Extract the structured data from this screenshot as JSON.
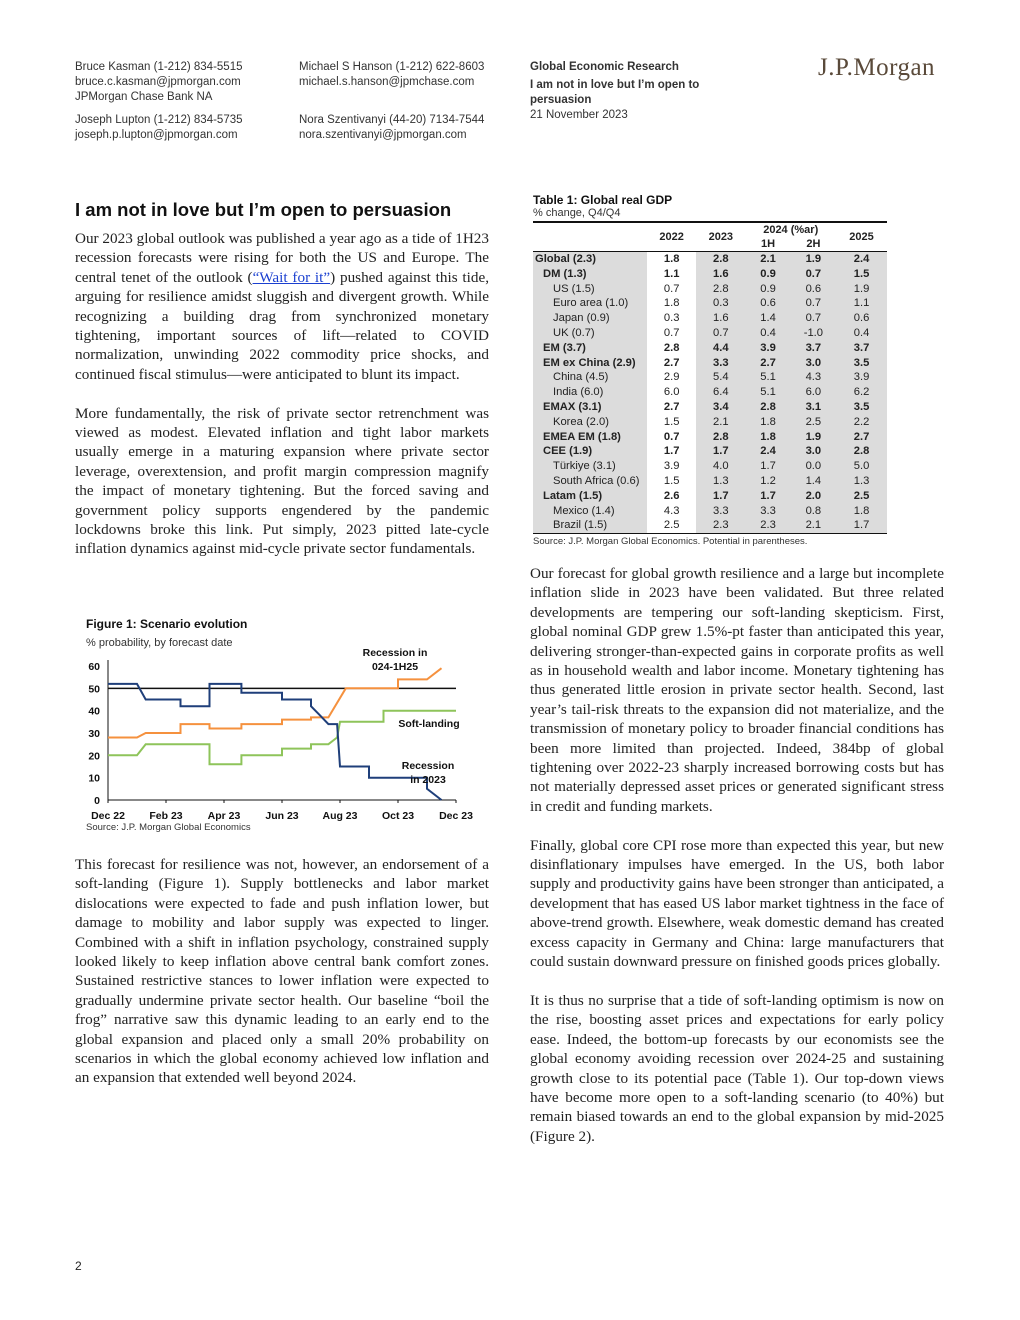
{
  "header": {
    "author_block_1": [
      "Bruce Kasman  (1-212) 834-5515",
      "bruce.c.kasman@jpmorgan.com",
      "JPMorgan Chase Bank NA"
    ],
    "author_block_2": [
      "Joseph Lupton  (1-212) 834-5735",
      "joseph.p.lupton@jpmorgan.com"
    ],
    "author_block_3": [
      "Michael S Hanson  (1-212) 622-8603",
      "michael.s.hanson@jpmchase.com"
    ],
    "author_block_4": [
      "Nora Szentivanyi  (44-20) 7134-7544",
      "nora.szentivanyi@jpmorgan.com"
    ],
    "research_unit": "Global Economic Research",
    "report_title": "I am not in love but I’m open to persuasion",
    "date": "21 November 2023",
    "logo": "J.P.Morgan"
  },
  "article": {
    "title": "I am not in love but I’m open to persuasion",
    "p1_before_link": "Our 2023 global outlook was published a year ago as a tide of 1H23 recession forecasts were rising for both the US and Europe. The central tenet of the outlook (",
    "p1_link": "“Wait for it”",
    "p1_after_link": ") pushed against this tide, arguing for resilience amidst sluggish and divergent growth. While recognizing a building drag from synchronized monetary tightening, important sources of lift—related to COVID normalization, unwinding 2022 commodity price shocks, and continued fiscal stimulus—were anticipated to blunt its impact.",
    "p2": "More fundamentally, the risk of private sector retrenchment was viewed as modest. Elevated inflation and tight labor markets usually emerge in a maturing expansion where private sector leverage, overextension, and profit margin compression magnify the impact of monetary tightening. But the forced saving and government policy supports engendered by the pandemic lockdowns broke this link. Put simply, 2023 pitted late-cycle inflation dynamics against mid-cycle private sector fundamentals.",
    "p3": "This forecast for resilience was not, however, an endorsement of a soft-landing (Figure 1). Supply bottlenecks and labor market dislocations were expected to fade and push inflation lower, but damage to mobility and labor supply was expected to linger. Combined with a shift in inflation psychology, constrained supply looked likely to keep inflation above central bank comfort zones. Sustained restrictive stances to lower inflation were expected to gradually undermine private sector health. Our baseline “boil the frog” narrative saw this dynamic leading to an early end to the global expansion and placed only a small 20% probability on scenarios in which the global economy achieved low inflation and an expansion that extended well beyond 2024.",
    "p4": "Our forecast for global growth resilience and a large but incomplete inflation slide in 2023 have been validated. But three related developments are tempering our soft-landing skepticism. First, global nominal GDP grew 1.5%-pt faster than anticipated this year, delivering stronger-than-expected gains in corporate profits as well as in household wealth and labor income. Monetary tightening has thus generated little erosion in private sector health. Second, last year’s tail-risk threats to the expansion did not materialize, and the transmission of monetary policy to broader financial conditions has been more limited than projected. Indeed, 384bp of global tightening over 2022-23 sharply increased borrowing costs but has not materially depressed asset prices or generated significant stress in credit and funding markets.",
    "p5": "Finally, global core CPI rose more than expected this year, but new disinflationary impulses have emerged. In the US, both labor supply and productivity gains have been stronger than anticipated, a development that has eased US labor market tightness in the face of above-trend growth. Elsewhere, weak domestic demand has created excess capacity in Germany and China: large manufacturers that could sustain downward pressure on finished goods prices globally.",
    "p6": "It is thus no surprise that a tide of soft-landing optimism is now on the rise, boosting asset prices and expectations for early policy ease. Indeed, the bottom-up forecasts by our economists see the global economy avoiding recession over 2024-25 and sustaining growth close to its potential pace (Table 1). Our top-down views have become more open to a soft-landing scenario (to 40%) but remain biased towards an end to the global expansion by mid-2025 (Figure 2)."
  },
  "chart_data": {
    "type": "line",
    "title": "Figure 1: Scenario evolution",
    "subtitle": "% probability, by forecast date",
    "source": "Source: J.P. Morgan Global Economics",
    "x_ticks": [
      "Dec 22",
      "Feb 23",
      "Apr 23",
      "Jun 23",
      "Aug 23",
      "Oct 23",
      "Dec 23"
    ],
    "xlim": [
      0,
      12
    ],
    "ylim": [
      0,
      60
    ],
    "y_ticks": [
      0,
      10,
      20,
      30,
      40,
      50,
      60
    ],
    "reference_line": 50,
    "series": [
      {
        "name": "Recession in 2024-1H25",
        "color": "#f5913e",
        "points": [
          [
            0,
            28
          ],
          [
            1,
            28
          ],
          [
            1.3,
            30
          ],
          [
            2.5,
            30
          ],
          [
            2.5,
            34
          ],
          [
            3.5,
            34
          ],
          [
            3.5,
            32
          ],
          [
            4.6,
            32
          ],
          [
            4.6,
            34
          ],
          [
            6,
            34
          ],
          [
            6,
            36
          ],
          [
            7,
            36
          ],
          [
            7,
            37
          ],
          [
            7.6,
            37
          ],
          [
            8.2,
            50
          ],
          [
            10,
            50
          ],
          [
            10,
            54
          ],
          [
            11,
            54
          ],
          [
            11.5,
            59
          ]
        ]
      },
      {
        "name": "Soft-landing",
        "color": "#8ec45a",
        "points": [
          [
            0,
            20
          ],
          [
            1,
            20
          ],
          [
            1.3,
            25
          ],
          [
            3.5,
            25
          ],
          [
            3.5,
            16
          ],
          [
            4.6,
            16
          ],
          [
            4.6,
            20
          ],
          [
            6,
            20
          ],
          [
            6,
            23
          ],
          [
            7,
            23
          ],
          [
            7,
            25
          ],
          [
            7.6,
            25
          ],
          [
            7.9,
            28
          ],
          [
            8,
            35
          ],
          [
            9.5,
            35
          ],
          [
            9.5,
            40
          ],
          [
            11,
            40
          ],
          [
            12,
            40
          ]
        ]
      },
      {
        "name": "Recession in 2023",
        "color": "#1f3f7a",
        "points": [
          [
            0,
            52
          ],
          [
            1,
            52
          ],
          [
            1.3,
            45
          ],
          [
            2.5,
            45
          ],
          [
            2.5,
            42
          ],
          [
            3.5,
            42
          ],
          [
            3.5,
            52
          ],
          [
            4.6,
            52
          ],
          [
            4.6,
            48
          ],
          [
            6,
            48
          ],
          [
            6,
            45
          ],
          [
            7,
            45
          ],
          [
            7,
            42
          ],
          [
            7.3,
            38
          ],
          [
            7.6,
            34
          ],
          [
            7.9,
            34
          ],
          [
            8,
            15
          ],
          [
            9,
            15
          ],
          [
            9,
            10
          ],
          [
            11,
            10
          ],
          [
            11,
            5
          ],
          [
            11.5,
            0
          ]
        ]
      }
    ]
  },
  "table1": {
    "title": "Table 1: Global real GDP",
    "subtitle": "% change, Q4/Q4",
    "headers": {
      "y2022": "2022",
      "y2023": "2023",
      "y2024": "2024 (%ar)",
      "h1": "1H",
      "h2": "2H",
      "y2025": "2025"
    },
    "rows": [
      {
        "label": "Global (2.3)",
        "values": [
          "1.8",
          "2.8",
          "2.1",
          "1.9",
          "2.4"
        ]
      },
      {
        "label": "DM (1.3)",
        "values": [
          "1.1",
          "1.6",
          "0.9",
          "0.7",
          "1.5"
        ]
      },
      {
        "label": "US (1.5)",
        "values": [
          "0.7",
          "2.8",
          "0.9",
          "0.6",
          "1.9"
        ]
      },
      {
        "label": "Euro area (1.0)",
        "values": [
          "1.8",
          "0.3",
          "0.6",
          "0.7",
          "1.1"
        ]
      },
      {
        "label": "Japan (0.9)",
        "values": [
          "0.3",
          "1.6",
          "1.4",
          "0.7",
          "0.6"
        ]
      },
      {
        "label": "UK (0.7)",
        "values": [
          "0.7",
          "0.7",
          "0.4",
          "-1.0",
          "0.4"
        ]
      },
      {
        "label": "EM (3.7)",
        "values": [
          "2.8",
          "4.4",
          "3.9",
          "3.7",
          "3.7"
        ]
      },
      {
        "label": "EM ex China (2.9)",
        "values": [
          "2.7",
          "3.3",
          "2.7",
          "3.0",
          "3.5"
        ]
      },
      {
        "label": "China (4.5)",
        "values": [
          "2.9",
          "5.4",
          "5.1",
          "4.3",
          "3.9"
        ]
      },
      {
        "label": "India (6.0)",
        "values": [
          "6.0",
          "6.4",
          "5.1",
          "6.0",
          "6.2"
        ]
      },
      {
        "label": "EMAX (3.1)",
        "values": [
          "2.7",
          "3.4",
          "2.8",
          "3.1",
          "3.5"
        ]
      },
      {
        "label": "Korea (2.0)",
        "values": [
          "1.5",
          "2.1",
          "1.8",
          "2.5",
          "2.2"
        ]
      },
      {
        "label": "EMEA EM (1.8)",
        "values": [
          "0.7",
          "2.8",
          "1.8",
          "1.9",
          "2.7"
        ]
      },
      {
        "label": "CEE (1.9)",
        "values": [
          "1.7",
          "1.7",
          "2.4",
          "3.0",
          "2.8"
        ]
      },
      {
        "label": "Türkiye (3.1)",
        "values": [
          "3.9",
          "4.0",
          "1.7",
          "0.0",
          "5.0"
        ]
      },
      {
        "label": "South Africa (0.6)",
        "values": [
          "1.5",
          "1.3",
          "1.2",
          "1.4",
          "1.3"
        ]
      },
      {
        "label": "Latam (1.5)",
        "values": [
          "2.6",
          "1.7",
          "1.7",
          "2.0",
          "2.5"
        ]
      },
      {
        "label": "Mexico (1.4)",
        "values": [
          "4.3",
          "3.3",
          "3.3",
          "0.8",
          "1.8"
        ]
      },
      {
        "label": "Brazil (1.5)",
        "values": [
          "2.5",
          "2.3",
          "2.3",
          "2.1",
          "1.7"
        ]
      }
    ],
    "row_levels": [
      0,
      1,
      2,
      2,
      2,
      2,
      1,
      1,
      2,
      2,
      1,
      2,
      1,
      1,
      2,
      2,
      1,
      2,
      2
    ],
    "row_bold": [
      true,
      true,
      false,
      false,
      false,
      false,
      true,
      true,
      false,
      false,
      true,
      false,
      true,
      true,
      false,
      false,
      true,
      false,
      false
    ],
    "source": "Source: J.P. Morgan Global Economics. Potential in parentheses."
  },
  "page_number": "2"
}
